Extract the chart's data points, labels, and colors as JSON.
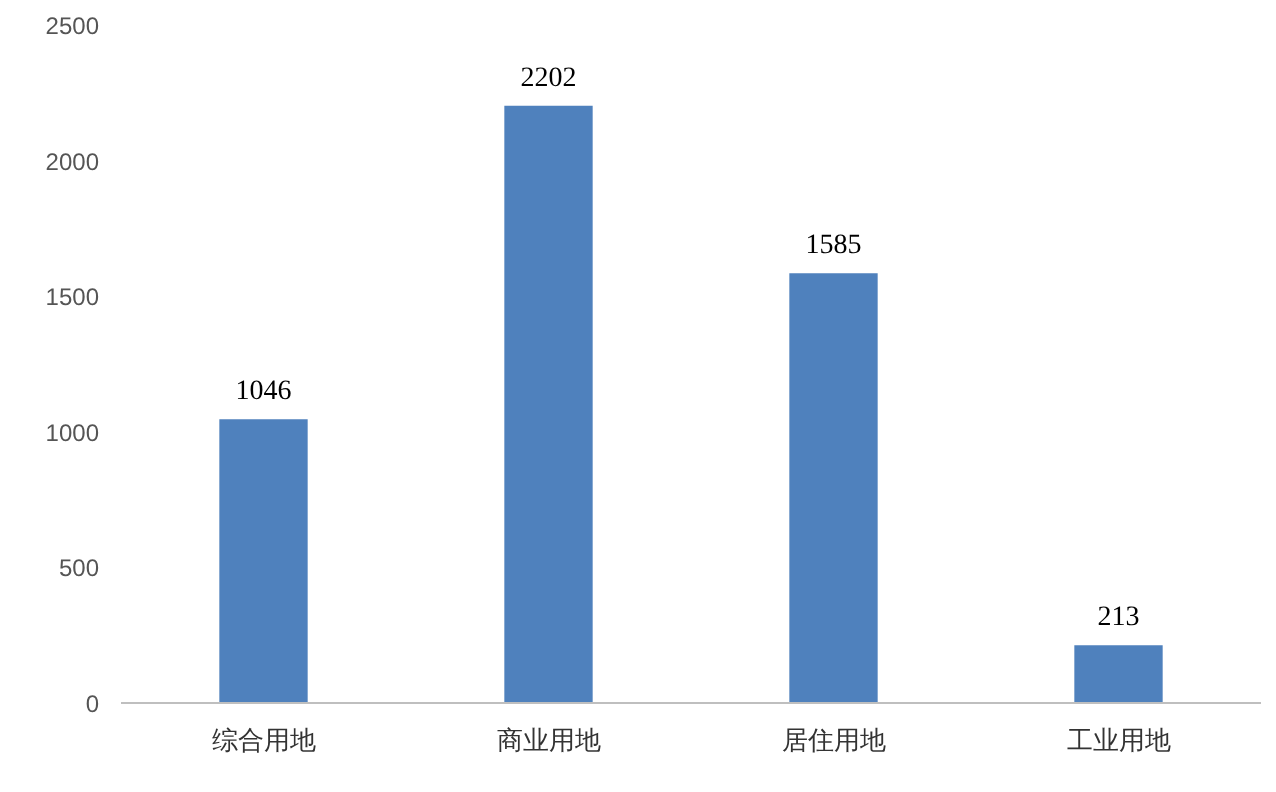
{
  "chart_data": {
    "type": "bar",
    "categories": [
      "综合用地",
      "商业用地",
      "居住用地",
      "工业用地"
    ],
    "values": [
      1046,
      2202,
      1585,
      213
    ],
    "color": "#4f81bd",
    "ylim": [
      0,
      2500
    ],
    "yticks": [
      0,
      500,
      1000,
      1500,
      2000,
      2500
    ],
    "grid": false,
    "data_labels": true
  }
}
